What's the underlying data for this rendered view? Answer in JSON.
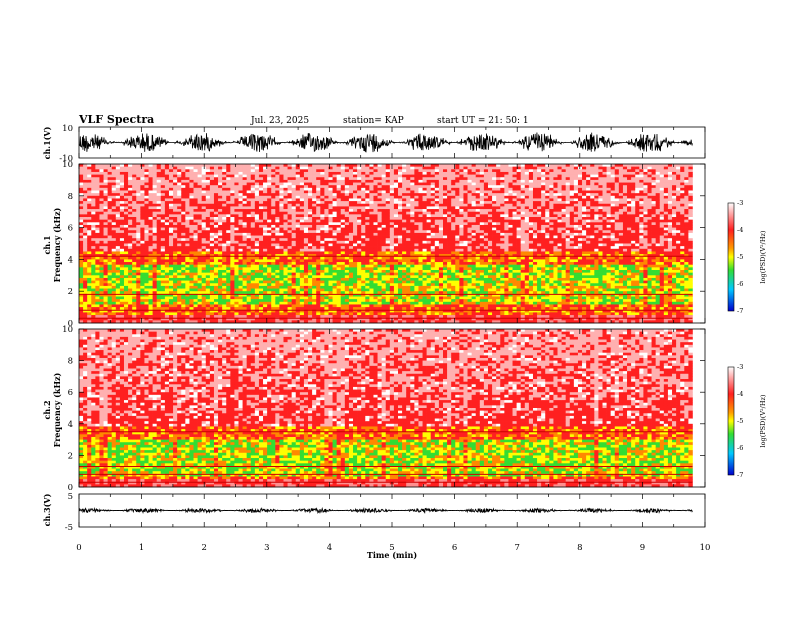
{
  "header": {
    "title": "VLF Spectra",
    "date": "Jul. 23, 2025",
    "station": "station= KAP",
    "start": "start UT =  21: 50: 1"
  },
  "chart_data": [
    {
      "type": "line",
      "id": "ch1_waveform",
      "ylabel": "ch.1(V)",
      "ylim": [
        -10,
        10
      ],
      "yticks": [
        "10",
        "-10"
      ],
      "x_range_min": [
        0,
        9.8
      ]
    },
    {
      "type": "heatmap",
      "id": "ch1_spectrogram",
      "ylabel": "ch.1\nFrequency (kHz)",
      "ylabel_lines": [
        "ch.1",
        "Frequency (kHz)"
      ],
      "ylim": [
        0,
        10
      ],
      "yticks": [
        "0",
        "2",
        "4",
        "6",
        "8",
        "10"
      ],
      "colorbar": {
        "label": "log(PSD)(V²/Hz)",
        "range": [
          -7,
          -3
        ],
        "ticks": [
          "-3",
          "-4",
          "-5",
          "-6",
          "-7"
        ]
      },
      "bands_khz": [
        {
          "from": 0.5,
          "to": 4.5,
          "level": "high"
        },
        {
          "from": 1.2,
          "to": 3.6,
          "level": "peak"
        }
      ]
    },
    {
      "type": "heatmap",
      "id": "ch2_spectrogram",
      "ylabel": "ch.2\nFrequency (kHz)",
      "ylabel_lines": [
        "ch.2",
        "Frequency (kHz)"
      ],
      "ylim": [
        0,
        10
      ],
      "yticks": [
        "0",
        "2",
        "4",
        "6",
        "8",
        "10"
      ],
      "colorbar": {
        "label": "log(PSD)(V²/Hz)",
        "range": [
          -7,
          -3
        ],
        "ticks": [
          "-3",
          "-4",
          "-5",
          "-6",
          "-7"
        ]
      },
      "bands_khz": [
        {
          "from": 0.5,
          "to": 3.8,
          "level": "high"
        },
        {
          "from": 0.7,
          "to": 3.0,
          "level": "peak"
        }
      ]
    },
    {
      "type": "line",
      "id": "ch3_waveform",
      "ylabel": "ch.3(V)",
      "ylim": [
        -5,
        5
      ],
      "yticks": [
        "5",
        "-5"
      ],
      "x_range_min": [
        0,
        9.8
      ]
    }
  ],
  "xaxis": {
    "label": "Time (min)",
    "range": [
      0,
      10
    ],
    "ticks": [
      "0",
      "1",
      "2",
      "3",
      "4",
      "5",
      "6",
      "7",
      "8",
      "9",
      "10"
    ]
  },
  "colors": {
    "low": "#ffffff",
    "mid": "#ff2020",
    "high": "#ffff00",
    "peak": "#33dd33"
  }
}
